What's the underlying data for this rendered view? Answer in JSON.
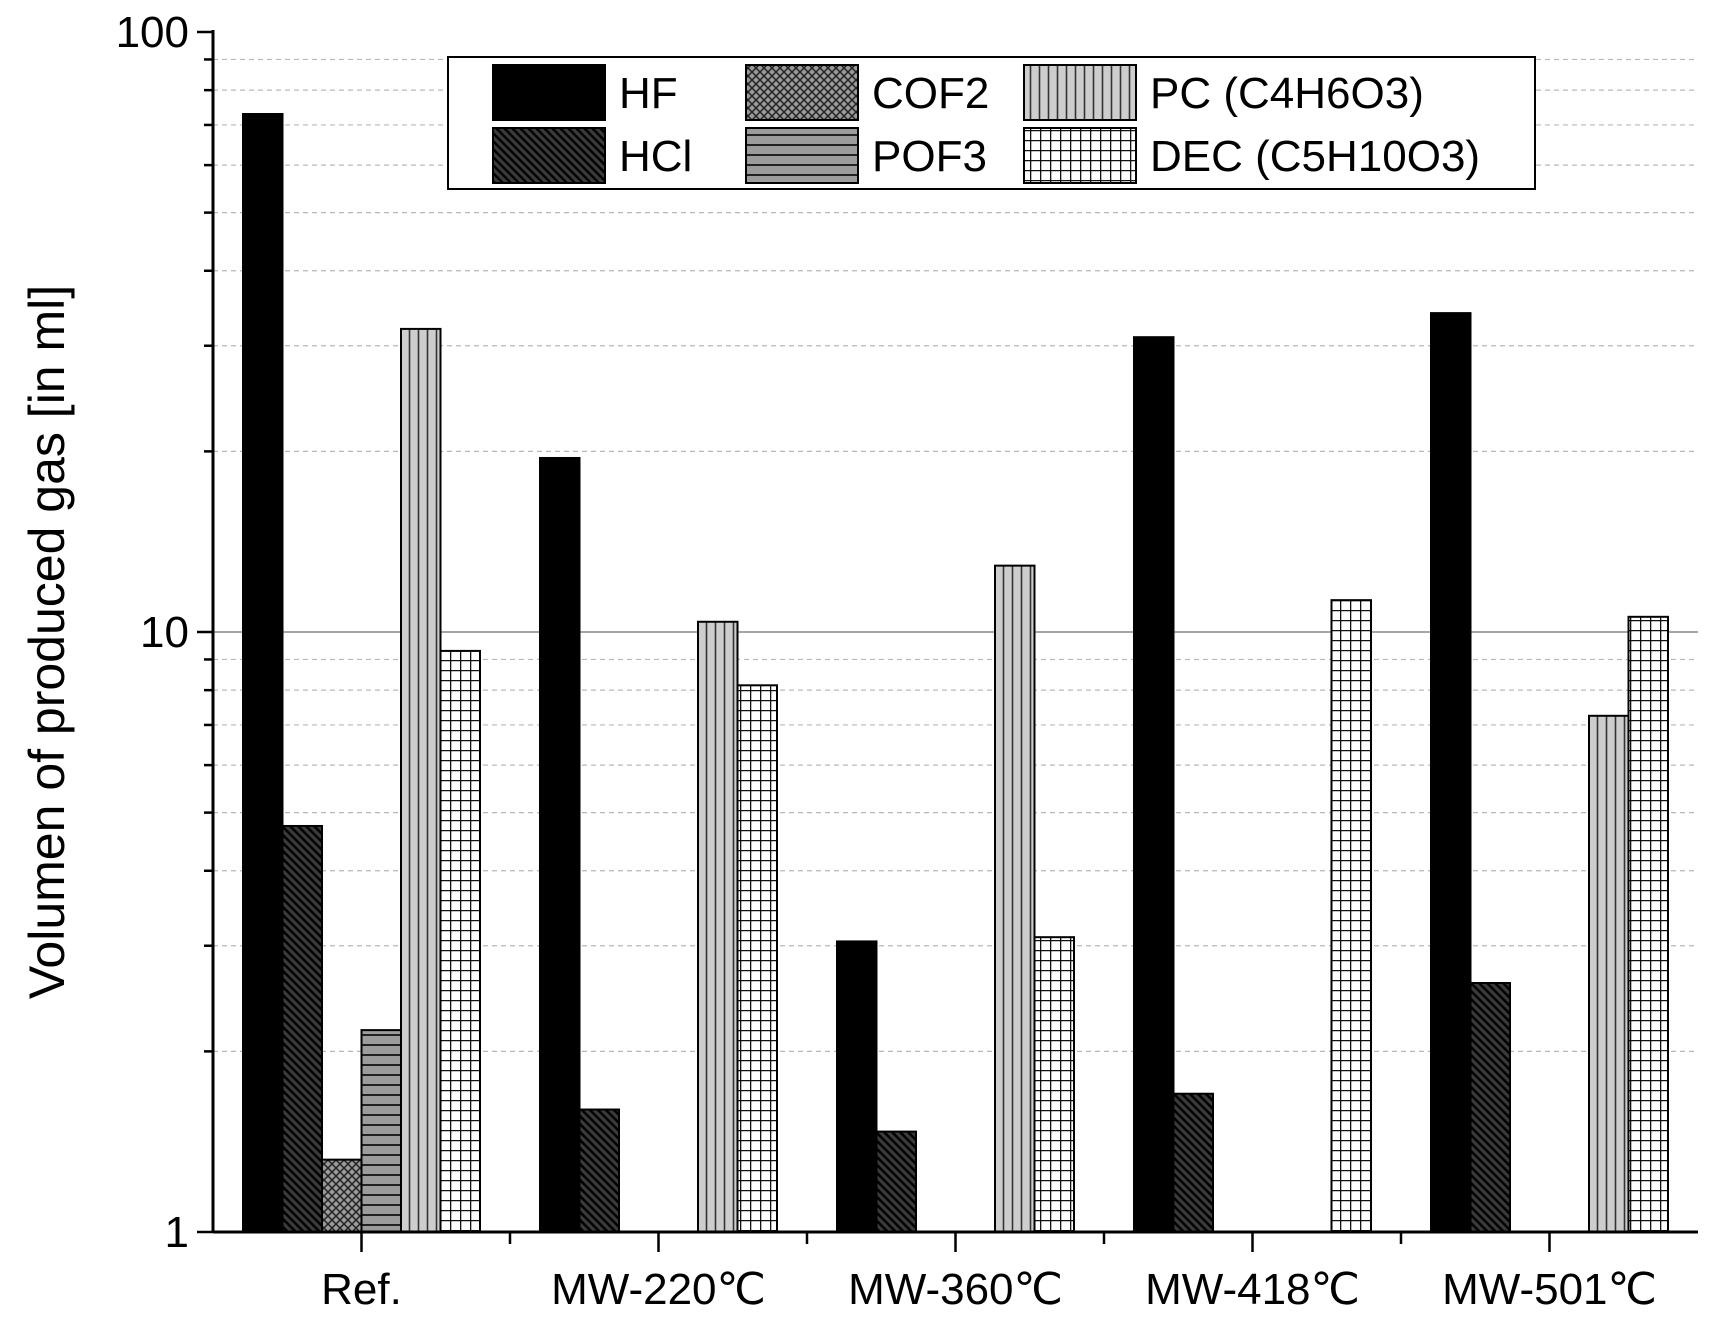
{
  "chart_data": {
    "type": "bar",
    "yscale": "log",
    "ylabel": "Volumen of produced gas [in ml]",
    "xlabel": "",
    "ylim": [
      1,
      100
    ],
    "y_ticks": [
      {
        "value": 1,
        "label": "1"
      },
      {
        "value": 10,
        "label": "10"
      },
      {
        "value": 100,
        "label": "100"
      }
    ],
    "categories": [
      "Ref.",
      "MW-220℃",
      "MW-360℃",
      "MW-418℃",
      "MW-501℃"
    ],
    "series": [
      {
        "name": "HF",
        "pattern": "solid-black",
        "values": [
          73,
          19.5,
          3.05,
          31,
          34
        ]
      },
      {
        "name": "HCl",
        "pattern": "diag-dense",
        "values": [
          4.75,
          1.6,
          1.47,
          1.7,
          2.6
        ]
      },
      {
        "name": "COF2",
        "pattern": "crosshatch",
        "values": [
          1.32,
          null,
          null,
          null,
          null
        ]
      },
      {
        "name": "POF3",
        "pattern": "horizontal",
        "values": [
          2.17,
          null,
          null,
          null,
          null
        ]
      },
      {
        "name": "PC (C4H6O3)",
        "pattern": "vertical",
        "values": [
          32,
          10.4,
          12.9,
          null,
          7.25
        ]
      },
      {
        "name": "DEC (C5H10O3)",
        "pattern": "grid",
        "values": [
          9.3,
          8.15,
          3.1,
          11.3,
          10.6
        ]
      }
    ],
    "legend_position": "top-right",
    "colors": {
      "fill_dark": "#000000",
      "fill_gray": "#c8c8c8",
      "fill_white": "#ffffff",
      "grid": "#aaaaaa"
    }
  }
}
